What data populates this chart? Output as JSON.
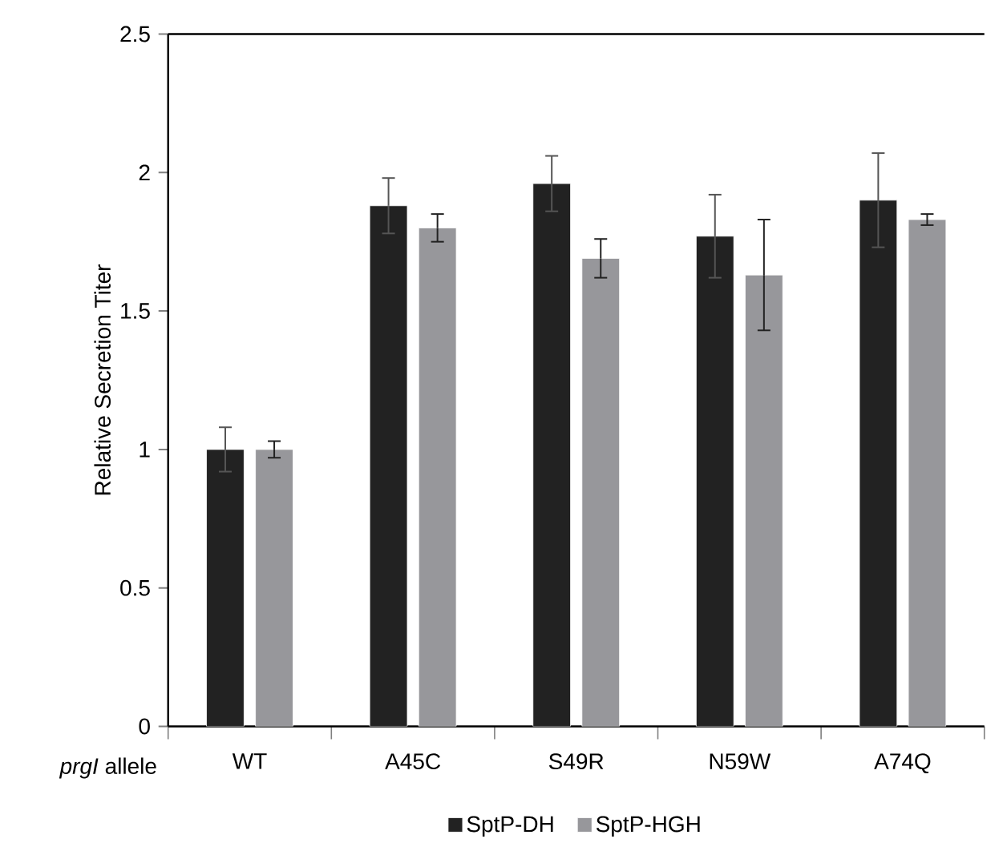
{
  "chart_data": {
    "type": "bar",
    "xlabel": "*prgI* allele",
    "ylabel": "Relative Secretion Titer",
    "categories": [
      "WT",
      "A45C",
      "S49R",
      "N59W",
      "A74Q"
    ],
    "series": [
      {
        "name": "SptP-DH",
        "color": "#222222",
        "values": [
          1.0,
          1.88,
          1.96,
          1.77,
          1.9
        ],
        "errors": [
          0.08,
          0.1,
          0.1,
          0.15,
          0.17
        ]
      },
      {
        "name": "SptP-HGH",
        "color": "#97979b",
        "values": [
          1.0,
          1.8,
          1.69,
          1.63,
          1.83
        ],
        "errors": [
          0.03,
          0.05,
          0.07,
          0.2,
          0.02
        ]
      }
    ],
    "ylim": [
      0,
      2.5
    ],
    "yticks": [
      0,
      0.5,
      1,
      1.5,
      2,
      2.5
    ],
    "grid": false,
    "legend": "bottom"
  }
}
